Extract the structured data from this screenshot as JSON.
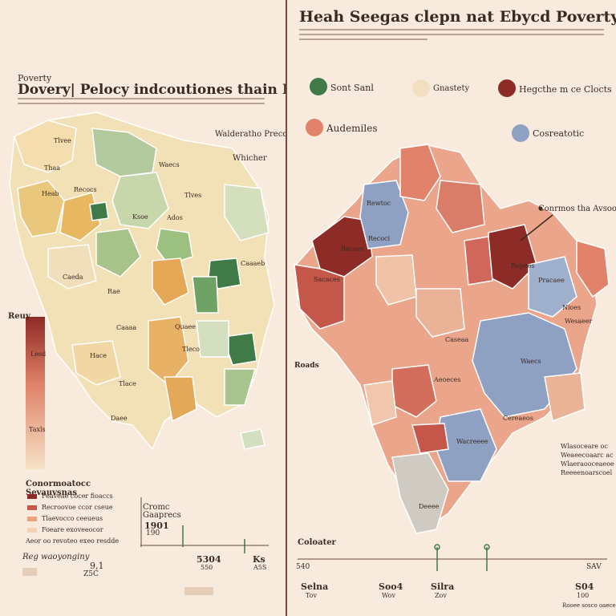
{
  "left": {
    "kicker": "Poverty",
    "title": "Dovery| Pelocy indcoutiones thain Rurey inarkers",
    "annotation_top": "Walderatho Precd.",
    "annotation_right": "Whicher",
    "region_labels": [
      "Tlvee",
      "Thaa",
      "Heab",
      "Recocs",
      "Waecs",
      "Caeda",
      "Tlves",
      "Ksoe",
      "Ados",
      "Caaaeb",
      "Rae",
      "Caaaa",
      "Hace",
      "Tlace",
      "Quaee",
      "Tleco",
      "Daee"
    ],
    "colorbar_side_label": "Reuy",
    "colorbar_top_label": "Lesd",
    "colorbar_bottom_label": "Taxls",
    "legend_title": "Conormoatocc Sevauvsnas",
    "legend_items": [
      "Feaveae cocer fioaccs",
      "Recroovoe ccor cseue",
      "Tlaevocco ceeueus",
      "Foeare exoveeocor"
    ],
    "legend_footer": "Aeor oo revoteo exeo resdde",
    "bottom_label": "Reg waoyonginy",
    "bottom_value": "9,1",
    "bottom_value_sub": "Z5C",
    "inset_label1": "Cromc",
    "inset_label2": "Gaaprecs",
    "inset_value": "1901",
    "inset_value_sub": "190",
    "axis_val1": "5304",
    "axis_val1_sub": "550",
    "axis_val2": "Ks",
    "axis_val2_sub": "A5S"
  },
  "right": {
    "title": "Heah Seegas clepn nat Ebycd Poverty inealh Heaat",
    "legend": [
      {
        "label": "Sont Sanl",
        "color": "#3f7a47"
      },
      {
        "label": "Gnastety",
        "color": "#f1dfbf"
      },
      {
        "label": "Hegcthe m ce Clocts",
        "color": "#8d2b26"
      },
      {
        "label": "Audemiles",
        "color": "#e0836a"
      },
      {
        "label": "Cosreatotic",
        "color": "#8ea1c2"
      }
    ],
    "callout": "Conrmos tha Avsoo",
    "region_labels": [
      "Rewtoc",
      "Recoci",
      "Recaes",
      "Sacaces",
      "Repees",
      "Pracaee",
      "Nioes",
      "Wesaeer",
      "Caseaa",
      "Waecs",
      "Aeoeces",
      "Cereaeos",
      "Wacreeee",
      "Deeee"
    ],
    "side_label": "Roads",
    "notes": [
      "Wlasoceare oc",
      "Weaeecoaarc ac",
      "Wlaeraooceaeoe",
      "Reeeenoarscoel"
    ],
    "axis_title": "Coloater",
    "axis_start": "540",
    "axis_end": "SAV",
    "ticks": [
      {
        "value": "Selna",
        "sub": "Tov"
      },
      {
        "value": "Soo4",
        "sub": "Wov"
      },
      {
        "value": "Silra",
        "sub": "Zov"
      },
      {
        "value": "S04",
        "sub": "100"
      }
    ],
    "footer": "Rooee sosco oaece"
  }
}
